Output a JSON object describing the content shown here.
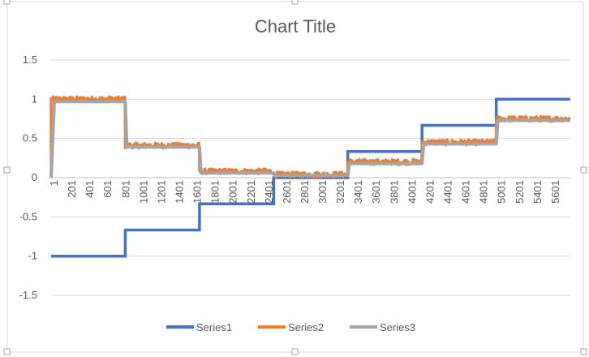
{
  "chart_data": {
    "type": "line",
    "title": "Chart Title",
    "xlabel": "",
    "ylabel": "",
    "ylim": [
      -1.5,
      1.5
    ],
    "yticks": [
      1.5,
      1,
      0.5,
      0,
      -0.5,
      -1,
      -1.5
    ],
    "ytick_labels": [
      "1.5",
      "1",
      "0.5",
      "0",
      "-0.5",
      "-1",
      "-1.5"
    ],
    "x_range": [
      1,
      5800
    ],
    "xtick_labels": [
      "1",
      "201",
      "401",
      "601",
      "801",
      "1001",
      "1201",
      "1401",
      "1601",
      "1801",
      "2001",
      "2201",
      "2401",
      "2601",
      "2801",
      "3001",
      "3201",
      "3401",
      "3601",
      "3801",
      "4001",
      "4201",
      "4401",
      "4601",
      "4801",
      "5001",
      "5201",
      "5401",
      "5601"
    ],
    "grid": "horizontal",
    "legend": "bottom",
    "series": [
      {
        "name": "Series1",
        "color": "#4472c4",
        "kind": "step",
        "segments": [
          {
            "x_start": 1,
            "x_end": 829,
            "y": -1
          },
          {
            "x_start": 829,
            "x_end": 1658,
            "y": -0.667
          },
          {
            "x_start": 1658,
            "x_end": 2487,
            "y": -0.333
          },
          {
            "x_start": 2487,
            "x_end": 3315,
            "y": 0
          },
          {
            "x_start": 3315,
            "x_end": 4144,
            "y": 0.333
          },
          {
            "x_start": 4144,
            "x_end": 4973,
            "y": 0.667
          },
          {
            "x_start": 4973,
            "x_end": 5800,
            "y": 1
          }
        ]
      },
      {
        "name": "Series2",
        "color": "#ed7d31",
        "kind": "noisy-step",
        "start": {
          "x": 1,
          "y": 0
        },
        "noise": 0.035,
        "segments": [
          {
            "x_start": 1,
            "x_end": 829,
            "y": 1.0
          },
          {
            "x_start": 829,
            "x_end": 1658,
            "y": 0.41
          },
          {
            "x_start": 1658,
            "x_end": 2487,
            "y": 0.08
          },
          {
            "x_start": 2487,
            "x_end": 3315,
            "y": 0.04
          },
          {
            "x_start": 3315,
            "x_end": 4144,
            "y": 0.2
          },
          {
            "x_start": 4144,
            "x_end": 4973,
            "y": 0.45
          },
          {
            "x_start": 4973,
            "x_end": 5800,
            "y": 0.75
          }
        ]
      },
      {
        "name": "Series3",
        "color": "#a5a5a5",
        "kind": "smooth-step",
        "start": {
          "x": 1,
          "y": 0
        },
        "segments": [
          {
            "x_start": 1,
            "x_end": 829,
            "y": 0.97
          },
          {
            "x_start": 829,
            "x_end": 1658,
            "y": 0.39
          },
          {
            "x_start": 1658,
            "x_end": 2487,
            "y": 0.06
          },
          {
            "x_start": 2487,
            "x_end": 3315,
            "y": 0.03
          },
          {
            "x_start": 3315,
            "x_end": 4144,
            "y": 0.18
          },
          {
            "x_start": 4144,
            "x_end": 4973,
            "y": 0.43
          },
          {
            "x_start": 4973,
            "x_end": 5800,
            "y": 0.73
          }
        ]
      }
    ]
  }
}
